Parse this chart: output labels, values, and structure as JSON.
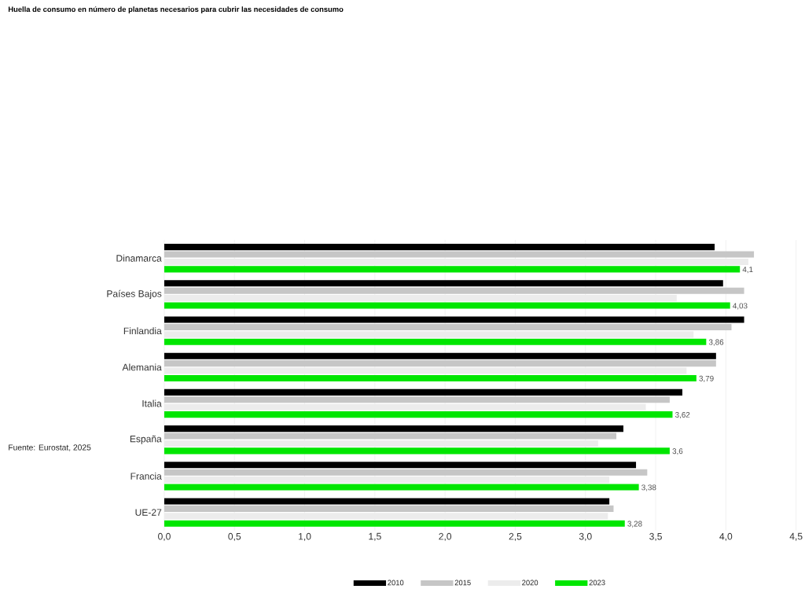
{
  "chart_data": {
    "type": "bar",
    "orientation": "horizontal",
    "title": "Huella de consumo en número de planetas necesarios para cubrir las necesidades de consumo",
    "categories": [
      "Dinamarca",
      "Países Bajos",
      "Finlandia",
      "Alemania",
      "Italia",
      "España",
      "Francia",
      "UE-27"
    ],
    "series": [
      {
        "name": "2010",
        "color": "#000000",
        "values": [
          3.92,
          3.98,
          4.13,
          3.93,
          3.69,
          3.27,
          3.36,
          3.17
        ]
      },
      {
        "name": "2015",
        "color": "#c6c6c6",
        "values": [
          4.2,
          4.13,
          4.04,
          3.93,
          3.6,
          3.22,
          3.44,
          3.2
        ]
      },
      {
        "name": "2020",
        "color": "#ececec",
        "values": [
          4.16,
          3.65,
          3.77,
          3.72,
          3.43,
          3.09,
          3.17,
          3.16
        ]
      },
      {
        "name": "2023",
        "color": "#00e600",
        "values": [
          4.1,
          4.03,
          3.86,
          3.79,
          3.62,
          3.6,
          3.38,
          3.28
        ],
        "value_labels": [
          "4,1",
          "4,03",
          "3,86",
          "3,79",
          "3,62",
          "3,6",
          "3,38",
          "3,28"
        ]
      }
    ],
    "xlim": [
      0,
      4.5
    ],
    "xticks": [
      {
        "value": 0,
        "label": "0,0"
      },
      {
        "value": 0.5,
        "label": "0,5"
      },
      {
        "value": 1,
        "label": "1,0"
      },
      {
        "value": 1.5,
        "label": "1,5"
      },
      {
        "value": 2,
        "label": "2,0"
      },
      {
        "value": 2.5,
        "label": "2,5"
      },
      {
        "value": 3,
        "label": "3,0"
      },
      {
        "value": 3.5,
        "label": "3,5"
      },
      {
        "value": 4,
        "label": "4,0"
      },
      {
        "value": 4.5,
        "label": "4,5"
      }
    ],
    "grid": "x",
    "legend": "bottom",
    "annotations": [
      "Fuente: Eurostat, 2025"
    ]
  }
}
